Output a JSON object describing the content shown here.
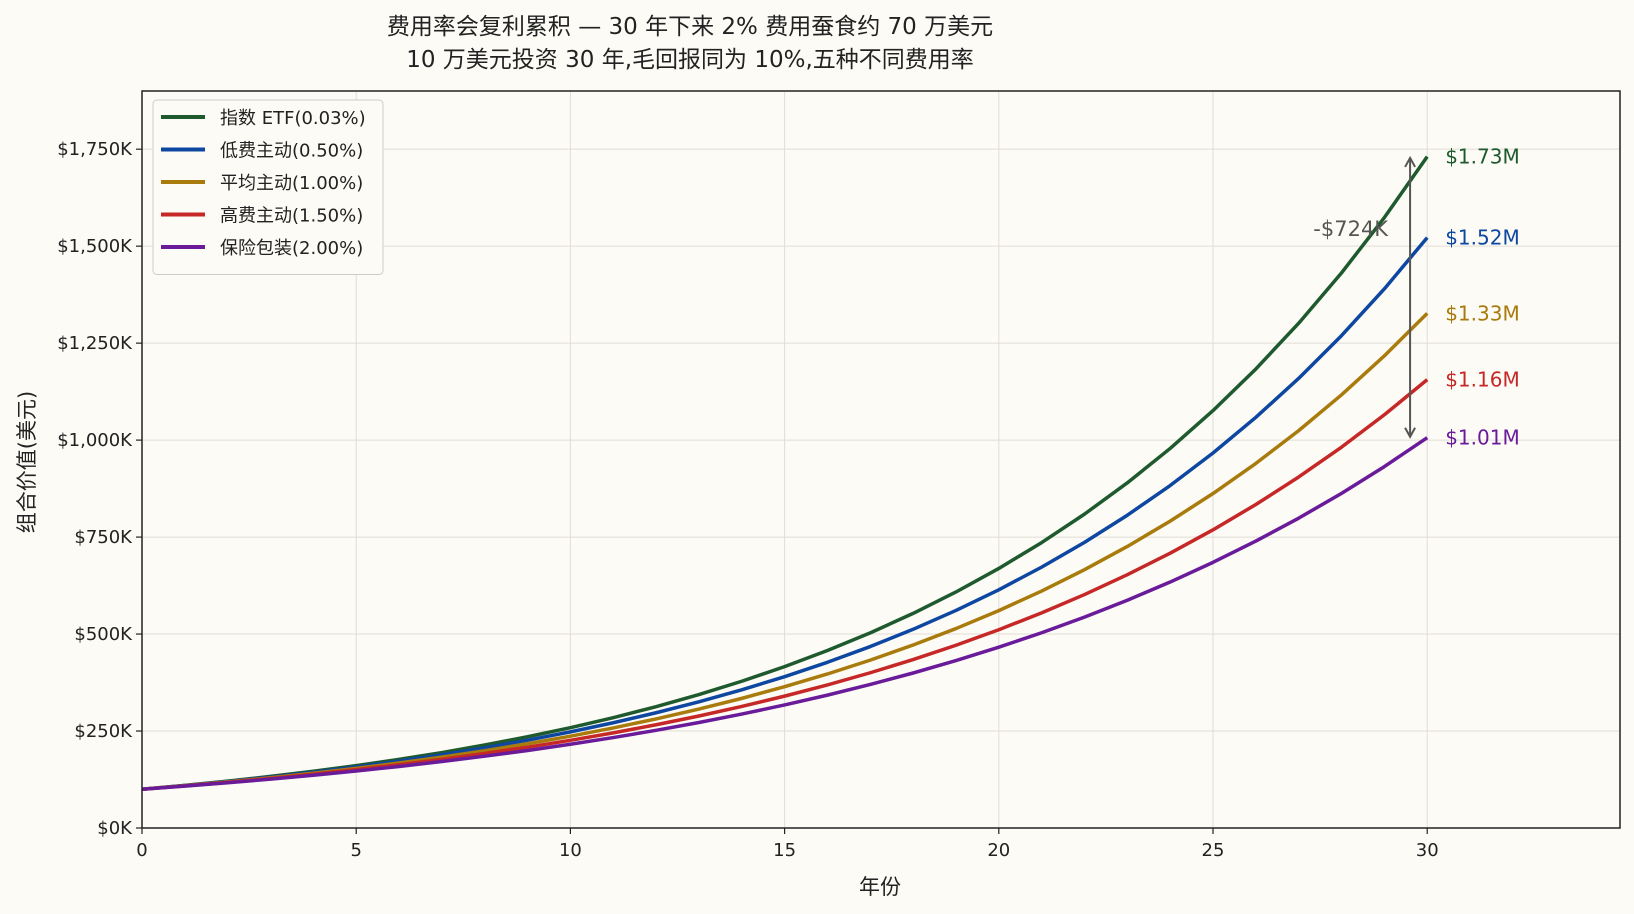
{
  "chart_data": {
    "type": "line",
    "title": "费用率会复利累积 — 30 年下来 2% 费用蚕食约 70 万美元",
    "subtitle": "10 万美元投资 30 年,毛回报同为 10%,五种不同费用率",
    "xlabel": "年份",
    "ylabel": "组合价值(美元)",
    "xlim": [
      0,
      34.5
    ],
    "ylim": [
      0,
      1900000
    ],
    "x_ticks": [
      0,
      5,
      10,
      15,
      20,
      25,
      30
    ],
    "y_ticks": [
      {
        "value": 0,
        "label": "$0K"
      },
      {
        "value": 250000,
        "label": "$250K"
      },
      {
        "value": 500000,
        "label": "$500K"
      },
      {
        "value": 750000,
        "label": "$750K"
      },
      {
        "value": 1000000,
        "label": "$1,000K"
      },
      {
        "value": 1250000,
        "label": "$1,250K"
      },
      {
        "value": 1500000,
        "label": "$1,500K"
      },
      {
        "value": 1750000,
        "label": "$1,750K"
      }
    ],
    "grid": true,
    "legend_position": "top-left",
    "initial_value": 100000,
    "years": 30,
    "gross_return": 0.1,
    "series": [
      {
        "name": "指数 ETF(0.03%)",
        "fee": 0.0003,
        "color": "#1e5a2d",
        "end_label": "$1.73M"
      },
      {
        "name": "低费主动(0.50%)",
        "fee": 0.005,
        "color": "#0d47a1",
        "end_label": "$1.52M"
      },
      {
        "name": "平均主动(1.00%)",
        "fee": 0.01,
        "color": "#a97a0c",
        "end_label": "$1.33M"
      },
      {
        "name": "高费主动(1.50%)",
        "fee": 0.015,
        "color": "#c62828",
        "end_label": "$1.16M"
      },
      {
        "name": "保险包装(2.00%)",
        "fee": 0.02,
        "color": "#6a1b9a",
        "end_label": "$1.01M"
      }
    ],
    "annotation": {
      "text": "-$724K",
      "x": 29.6,
      "y_top": 1730000,
      "y_bottom": 1006000,
      "color": "#555555"
    }
  }
}
